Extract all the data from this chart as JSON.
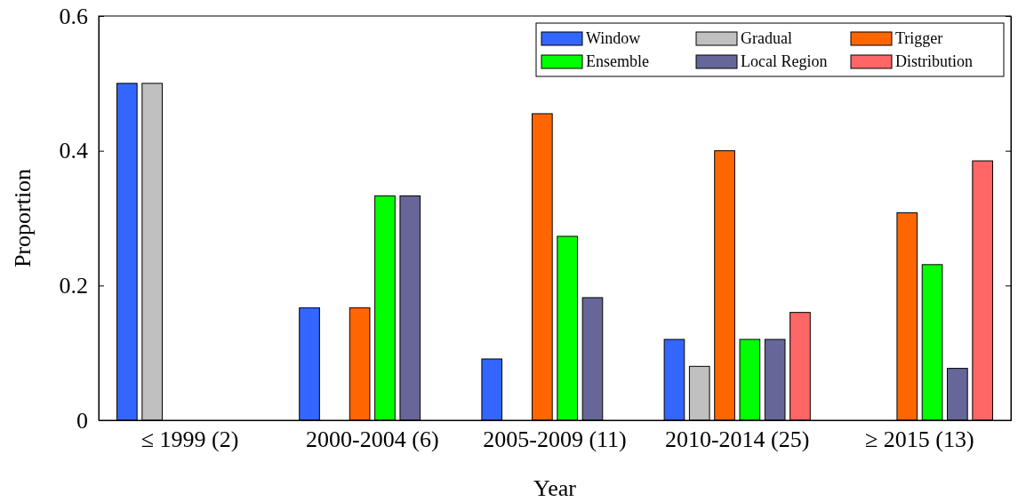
{
  "chart_data": {
    "type": "bar",
    "xlabel": "Year",
    "ylabel": "Proportion",
    "categories": [
      "≤ 1999 (2)",
      "2000-2004 (6)",
      "2005-2009 (11)",
      "2010-2014 (25)",
      "≥ 2015 (13)"
    ],
    "series": [
      {
        "name": "Window",
        "color": "#3366ff",
        "values": [
          0.5,
          0.167,
          0.091,
          0.12,
          0
        ]
      },
      {
        "name": "Gradual",
        "color": "#c0c0c0",
        "values": [
          0.5,
          0,
          0,
          0.08,
          0
        ]
      },
      {
        "name": "Trigger",
        "color": "#ff6600",
        "values": [
          0,
          0.167,
          0.455,
          0.4,
          0.308
        ]
      },
      {
        "name": "Ensemble",
        "color": "#00ff00",
        "values": [
          0,
          0.333,
          0.273,
          0.12,
          0.231
        ]
      },
      {
        "name": "Local Region",
        "color": "#666699",
        "values": [
          0,
          0.333,
          0.182,
          0.12,
          0.077
        ]
      },
      {
        "name": "Distribution",
        "color": "#ff6666",
        "values": [
          0,
          0,
          0,
          0.16,
          0.385
        ]
      }
    ],
    "ylim": [
      0,
      0.6
    ],
    "yticks": [
      0,
      0.2,
      0.4,
      0.6
    ],
    "grid": false,
    "legend": "top right"
  }
}
